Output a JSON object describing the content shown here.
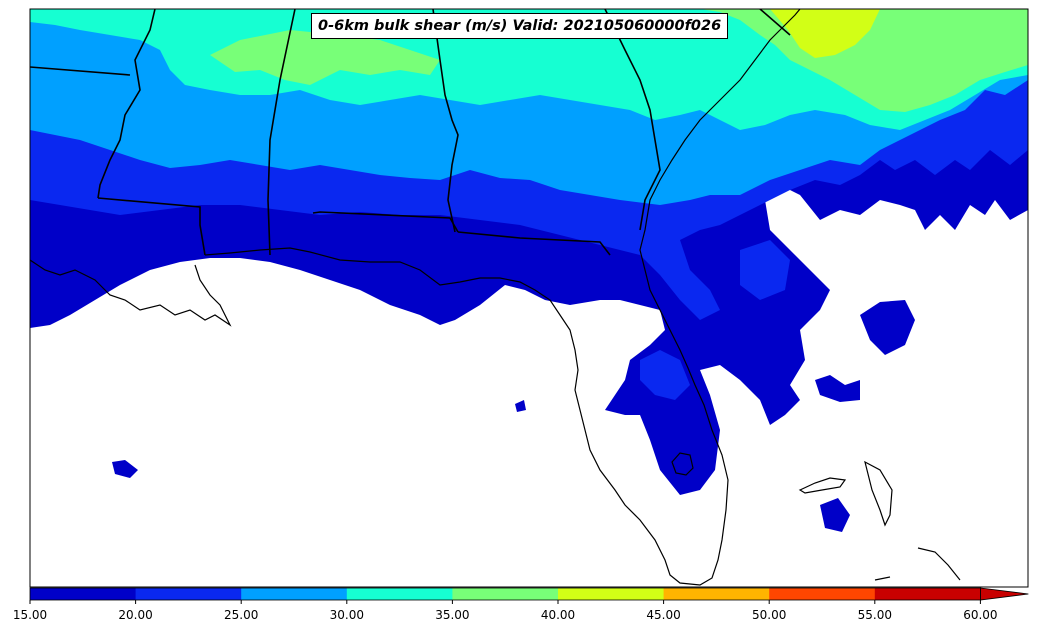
{
  "title": "0-6km bulk shear (m/s) Valid: 202105060000f026",
  "colorbar": {
    "ticks": [
      "15.00",
      "20.00",
      "25.00",
      "30.00",
      "35.00",
      "40.00",
      "45.00",
      "50.00",
      "55.00",
      "60.00"
    ],
    "colors": [
      "#0000c8",
      "#0a28f0",
      "#00a0ff",
      "#16ffd2",
      "#78ff78",
      "#d2ff16",
      "#ffb400",
      "#ff4600",
      "#c80000"
    ],
    "extend": "max",
    "units": "m/s"
  },
  "map": {
    "region": "Southeastern United States",
    "background": "#ffffff",
    "border_color": "#000000"
  }
}
